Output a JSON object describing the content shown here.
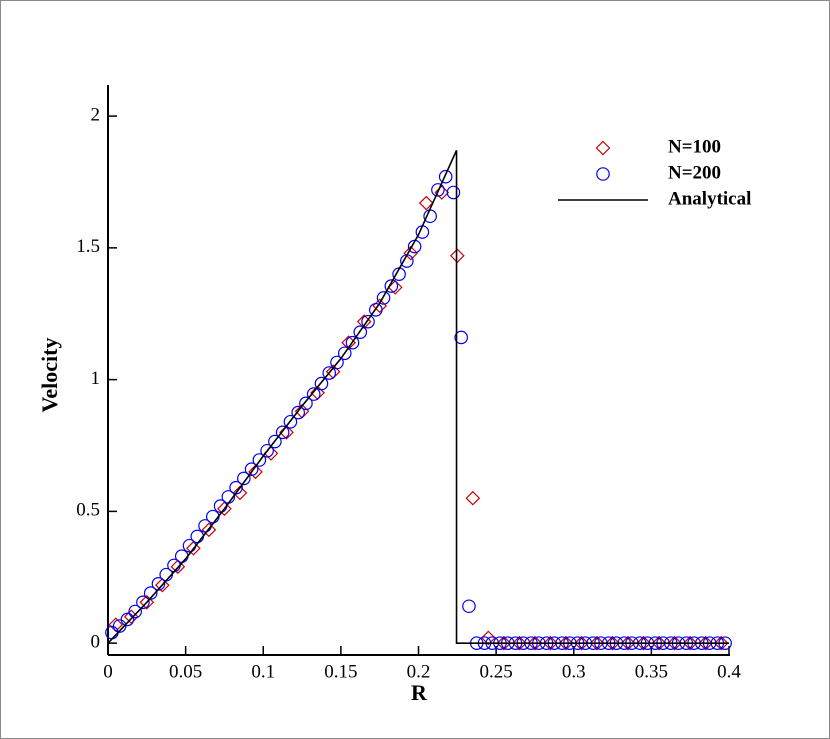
{
  "chart_data": {
    "type": "scatter",
    "xlabel": "R",
    "ylabel": "Velocity",
    "xlim": [
      0,
      0.4
    ],
    "ylim": [
      -0.045,
      2.118
    ],
    "xticks": [
      0,
      0.05,
      0.1,
      0.15,
      0.2,
      0.25,
      0.3,
      0.35,
      0.4
    ],
    "yticks": [
      0,
      0.5,
      1,
      1.5,
      2
    ],
    "legend": "upper right",
    "series": [
      {
        "name": "N=100",
        "color": "#cc0000",
        "marker": "diamond",
        "x": [
          0.005,
          0.015,
          0.025,
          0.035,
          0.045,
          0.055,
          0.065,
          0.075,
          0.085,
          0.095,
          0.105,
          0.115,
          0.125,
          0.135,
          0.145,
          0.155,
          0.165,
          0.175,
          0.185,
          0.195,
          0.205,
          0.215,
          0.225,
          0.235,
          0.245,
          0.255,
          0.265,
          0.275,
          0.285,
          0.295,
          0.305,
          0.315,
          0.325,
          0.335,
          0.345,
          0.355,
          0.365,
          0.375,
          0.385,
          0.395
        ],
        "values": [
          0.07,
          0.1,
          0.155,
          0.22,
          0.29,
          0.36,
          0.43,
          0.51,
          0.57,
          0.65,
          0.72,
          0.8,
          0.88,
          0.95,
          1.03,
          1.14,
          1.22,
          1.28,
          1.35,
          1.48,
          1.67,
          1.71,
          1.47,
          0.55,
          0.02,
          0,
          0,
          0,
          0,
          0,
          0,
          0,
          0,
          0,
          0,
          0,
          0,
          0,
          0,
          0
        ]
      },
      {
        "name": "N=200",
        "color": "#0000ee",
        "marker": "circle",
        "x": [
          0.0025,
          0.0075,
          0.0125,
          0.0175,
          0.0225,
          0.0275,
          0.0325,
          0.0375,
          0.0425,
          0.0475,
          0.0525,
          0.0575,
          0.0625,
          0.0675,
          0.0725,
          0.0775,
          0.0825,
          0.0875,
          0.0925,
          0.0975,
          0.1025,
          0.1075,
          0.1125,
          0.1175,
          0.1225,
          0.1275,
          0.1325,
          0.1375,
          0.1425,
          0.1475,
          0.1525,
          0.1575,
          0.1625,
          0.1675,
          0.1725,
          0.1775,
          0.1825,
          0.1875,
          0.1925,
          0.1975,
          0.2025,
          0.2075,
          0.2125,
          0.2175,
          0.2225,
          0.2275,
          0.2325,
          0.2375,
          0.2425,
          0.2475,
          0.2525,
          0.2575,
          0.2625,
          0.2675,
          0.2725,
          0.2775,
          0.2825,
          0.2875,
          0.2925,
          0.2975,
          0.3025,
          0.3075,
          0.3125,
          0.3175,
          0.3225,
          0.3275,
          0.3325,
          0.3375,
          0.3425,
          0.3475,
          0.3525,
          0.3575,
          0.3625,
          0.3675,
          0.3725,
          0.3775,
          0.3825,
          0.3875,
          0.3925,
          0.3975
        ],
        "values": [
          0.04,
          0.065,
          0.09,
          0.12,
          0.155,
          0.19,
          0.225,
          0.26,
          0.295,
          0.33,
          0.37,
          0.405,
          0.445,
          0.48,
          0.52,
          0.555,
          0.59,
          0.625,
          0.66,
          0.695,
          0.73,
          0.765,
          0.8,
          0.84,
          0.875,
          0.91,
          0.945,
          0.985,
          1.025,
          1.065,
          1.1,
          1.14,
          1.18,
          1.22,
          1.265,
          1.31,
          1.355,
          1.4,
          1.45,
          1.505,
          1.56,
          1.62,
          1.72,
          1.77,
          1.71,
          1.16,
          0.14,
          0,
          0,
          0,
          0,
          0,
          0,
          0,
          0,
          0,
          0,
          0,
          0,
          0,
          0,
          0,
          0,
          0,
          0,
          0,
          0,
          0,
          0,
          0,
          0,
          0,
          0,
          0,
          0,
          0,
          0,
          0,
          0,
          0
        ]
      },
      {
        "name": "Analytical",
        "color": "#000000",
        "marker": "line",
        "x": [
          0,
          0.025,
          0.05,
          0.075,
          0.1,
          0.125,
          0.15,
          0.175,
          0.2,
          0.2245,
          0.2245,
          0.4
        ],
        "values": [
          0,
          0.155,
          0.32,
          0.51,
          0.71,
          0.9,
          1.08,
          1.29,
          1.55,
          1.87,
          0,
          0
        ]
      }
    ]
  }
}
